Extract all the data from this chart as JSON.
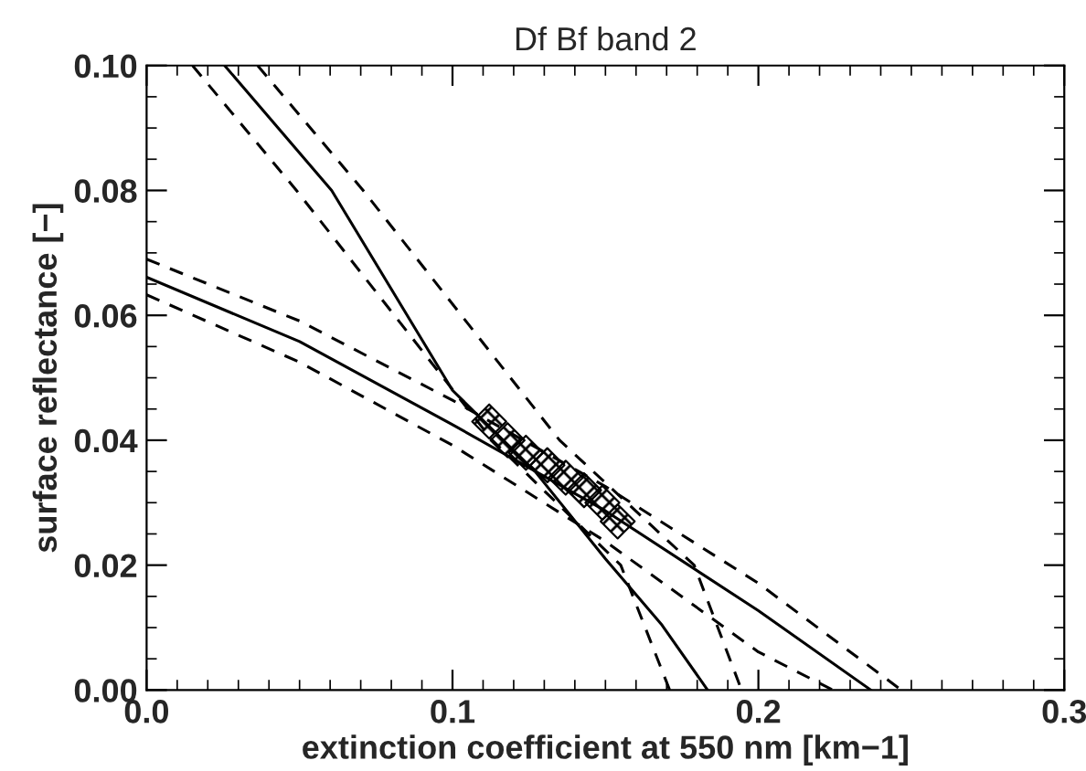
{
  "chart_data": {
    "type": "line",
    "title": "Df Bf band 2",
    "xlabel": "extinction coefficient at 550 nm [km−1]",
    "ylabel": "surface reflectance [−]",
    "xlim": [
      0.0,
      0.3
    ],
    "ylim": [
      0.0,
      0.1
    ],
    "xticks": [
      {
        "value": 0.0,
        "label": "0.0"
      },
      0.1,
      0.2,
      0.3
    ],
    "yticks": [
      {
        "value": 0.0,
        "label": "0.00"
      },
      {
        "value": 0.02,
        "label": "0.02"
      },
      {
        "value": 0.04,
        "label": "0.04"
      },
      {
        "value": 0.06,
        "label": "0.06"
      },
      {
        "value": 0.08,
        "label": "0.08"
      },
      {
        "value": 0.1,
        "label": "0.10"
      }
    ],
    "grid": false,
    "legend": false,
    "series": [
      {
        "color": "#000000",
        "line_style": "solid",
        "x": [
          0.0255,
          0.0605,
          0.1,
          0.127,
          0.15,
          0.1685,
          0.1834
        ],
        "values": [
          0.1,
          0.08,
          0.048,
          0.035,
          0.021,
          0.0104,
          0.0
        ]
      },
      {
        "color": "#000000",
        "line_style": "dashed",
        "x": [
          0.0363,
          0.0708,
          0.135,
          0.179,
          0.1945
        ],
        "values": [
          0.1,
          0.08,
          0.04,
          0.02,
          0.0
        ]
      },
      {
        "color": "#000000",
        "line_style": "dashed",
        "x": [
          0.015,
          0.049,
          0.113,
          0.155,
          0.171
        ],
        "values": [
          0.1,
          0.08,
          0.04,
          0.02,
          0.0
        ]
      },
      {
        "color": "#000000",
        "line_style": "solid",
        "x": [
          0.0,
          0.05,
          0.1,
          0.15,
          0.2,
          0.2368
        ],
        "values": [
          0.0661,
          0.0558,
          0.0425,
          0.0287,
          0.0127,
          0.0
        ]
      },
      {
        "color": "#000000",
        "line_style": "dashed",
        "x": [
          0.0,
          0.05,
          0.1,
          0.15,
          0.2,
          0.2467
        ],
        "values": [
          0.069,
          0.0591,
          0.0464,
          0.0326,
          0.0171,
          0.0
        ]
      },
      {
        "color": "#000000",
        "line_style": "dashed",
        "x": [
          0.0,
          0.05,
          0.1,
          0.15,
          0.2,
          0.2244
        ],
        "values": [
          0.0633,
          0.0525,
          0.0392,
          0.0238,
          0.0061,
          0.0
        ]
      },
      {
        "type": "scatter",
        "marker": "diamond",
        "color": "#000000",
        "x": [
          0.112,
          0.118,
          0.124,
          0.131,
          0.137,
          0.143,
          0.149,
          0.154
        ],
        "values": [
          0.043,
          0.04,
          0.038,
          0.036,
          0.034,
          0.032,
          0.03,
          0.027
        ]
      }
    ]
  }
}
